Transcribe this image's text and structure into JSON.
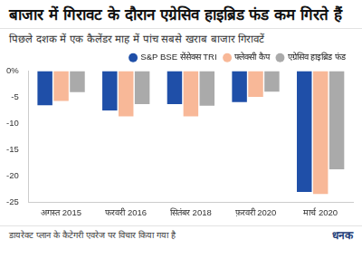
{
  "chart_data": {
    "type": "bar",
    "title": "बाजार में गिरावट के दौरान एग्रेसिव हाइब्रिड फंड कम गिरते हैं",
    "subtitle": "पिछले दशक में एक कैलेंडर माह में पांच सबसे खराब बाजार गिरावटें",
    "footnote": "डायरेक्ट प्लान के कैटेगरी एवरेज पर विचार किया गया है",
    "brand": "धनक",
    "categories": [
      "अगस्त 2015",
      "फरवरी 2016",
      "सितंबर 2018",
      "फ़रवरी 2020",
      "मार्च 2020"
    ],
    "series": [
      {
        "name": "S&P BSE सेंसेक्स TRI",
        "color": "#1f4fa8",
        "values": [
          -6.5,
          -7.5,
          -6.3,
          -5.9,
          -23.0
        ]
      },
      {
        "name": "फ्लेक्सी कैप",
        "color": "#f8b898",
        "values": [
          -5.7,
          -8.6,
          -8.6,
          -4.9,
          -23.4
        ]
      },
      {
        "name": "एग्रेसिव हाइब्रिड फंड",
        "color": "#aaaaaa",
        "values": [
          -4.0,
          -6.3,
          -6.6,
          -3.9,
          -18.7
        ]
      }
    ],
    "ylim": [
      -25,
      0
    ],
    "yticks": [
      {
        "value": 0,
        "label": "0%"
      },
      -5,
      -10,
      -15,
      -20,
      -25
    ],
    "grid": false,
    "legend": "top"
  }
}
